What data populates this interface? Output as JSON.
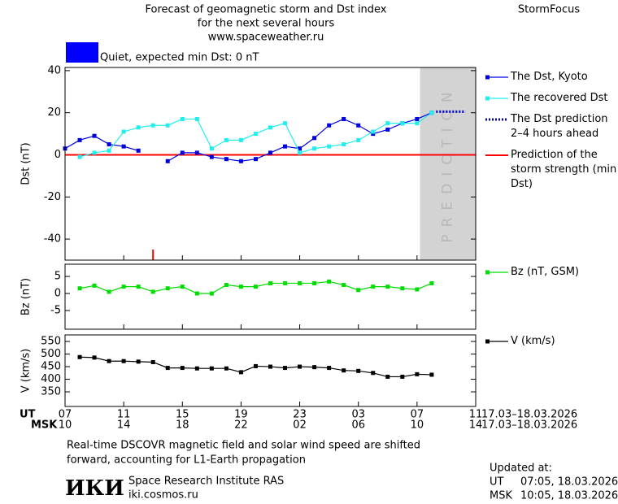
{
  "header": {
    "title": "Forecast of geomagnetic storm and Dst index",
    "subtitle": "for the next several hours",
    "url": "www.spaceweather.ru",
    "brand": "StormFocus"
  },
  "chart_data": [
    {
      "type": "line",
      "ylabel": "Dst (nT)",
      "xlim": [
        0,
        28
      ],
      "ylim": [
        -50,
        41.5
      ],
      "yticks": [
        -40,
        -20,
        0,
        20,
        40
      ],
      "status": {
        "label": "Quiet, expected min Dst: 0 nT",
        "color": "#0000ff"
      },
      "prediction_band": {
        "start": 24.2,
        "end": 28,
        "label": "PREDICTION",
        "color": "#d3d3d3"
      },
      "series": [
        {
          "name": "The Dst, Kyoto",
          "color": "#0000dd",
          "marker": "square",
          "x": [
            0,
            1,
            2,
            3,
            4,
            5,
            6,
            7,
            8,
            9,
            10,
            11,
            12,
            13,
            14,
            15,
            16,
            17,
            18,
            19,
            20,
            21,
            22,
            23,
            24,
            25
          ],
          "values": [
            3,
            7,
            9,
            5,
            4,
            2,
            null,
            -3,
            1,
            1,
            -1,
            -2,
            -3,
            -2,
            1,
            4,
            3,
            8,
            14,
            17,
            14,
            10,
            12,
            15,
            17,
            20
          ]
        },
        {
          "name": "The recovered Dst",
          "color": "#22eeee",
          "marker": "square",
          "x": [
            1,
            2,
            3,
            4,
            5,
            6,
            7,
            8,
            9,
            10,
            11,
            12,
            13,
            14,
            15,
            16,
            17,
            18,
            19,
            20,
            21,
            22,
            23,
            24,
            25
          ],
          "values": [
            -1,
            1,
            2,
            11,
            13,
            14,
            14,
            17,
            17,
            3,
            7,
            7,
            10,
            13,
            15,
            1,
            3,
            4,
            5,
            7,
            11,
            15,
            15,
            15,
            20
          ]
        },
        {
          "name": "The Dst prediction 2–4 hours ahead",
          "color": "#0000cc",
          "line_style": "dotted",
          "x": [
            25.3,
            27.3
          ],
          "values": [
            20.5,
            20.5
          ]
        }
      ],
      "reference_line": {
        "name": "Prediction of the storm strength (min Dst)",
        "value": 0,
        "x": 6,
        "color": "#ff0000"
      }
    },
    {
      "type": "line",
      "ylabel": "Bz (nT)",
      "xlim": [
        0,
        28
      ],
      "ylim": [
        -10.5,
        8.6
      ],
      "yticks": [
        -5,
        0,
        5
      ],
      "series": [
        {
          "name": "Bz (nT, GSM)",
          "color": "#00dd00",
          "marker": "square",
          "x": [
            1,
            2,
            3,
            4,
            5,
            6,
            7,
            8,
            9,
            10,
            11,
            12,
            13,
            14,
            15,
            16,
            17,
            18,
            19,
            20,
            21,
            22,
            23,
            24,
            25
          ],
          "values": [
            1.5,
            2.3,
            0.5,
            2,
            2,
            0.5,
            1.5,
            2,
            0,
            0,
            2.5,
            2,
            2,
            3,
            3,
            3,
            3,
            3.5,
            2.5,
            1,
            2,
            2,
            1.5,
            1.2,
            3
          ]
        }
      ]
    },
    {
      "type": "line",
      "ylabel": "V (km/s)",
      "xlim": [
        0,
        28
      ],
      "ylim": [
        292,
        576
      ],
      "yticks": [
        350,
        400,
        450,
        500,
        550
      ],
      "xlabel": "UT",
      "x2label": "MSK",
      "date_range": "17.03–18.03.2026",
      "xticks": [
        {
          "value": 0,
          "label": "07"
        },
        {
          "value": 4,
          "label": "11"
        },
        {
          "value": 8,
          "label": "15"
        },
        {
          "value": 12,
          "label": "19"
        },
        {
          "value": 16,
          "label": "23"
        },
        {
          "value": 20,
          "label": "03"
        },
        {
          "value": 24,
          "label": "07"
        },
        {
          "value": 28,
          "label": "11"
        }
      ],
      "xticks2": [
        {
          "value": 0,
          "label": "10"
        },
        {
          "value": 4,
          "label": "14"
        },
        {
          "value": 8,
          "label": "18"
        },
        {
          "value": 12,
          "label": "22"
        },
        {
          "value": 16,
          "label": "02"
        },
        {
          "value": 20,
          "label": "06"
        },
        {
          "value": 24,
          "label": "10"
        },
        {
          "value": 28,
          "label": "14"
        }
      ],
      "series": [
        {
          "name": "V (km/s)",
          "color": "#000000",
          "marker": "square",
          "x": [
            1,
            2,
            3,
            4,
            5,
            6,
            7,
            8,
            9,
            10,
            11,
            12,
            13,
            14,
            15,
            16,
            17,
            18,
            19,
            20,
            21,
            22,
            23,
            24,
            25
          ],
          "values": [
            488,
            486,
            472,
            472,
            470,
            468,
            445,
            445,
            443,
            443,
            443,
            428,
            452,
            450,
            445,
            450,
            448,
            445,
            435,
            433,
            425,
            410,
            410,
            420,
            418
          ]
        }
      ]
    }
  ],
  "footer": {
    "note_lines": [
      "Real-time DSCOVR magnetic field and solar wind speed are shifted",
      "forward, accounting for L1-Earth propagation"
    ],
    "logo": "ИКИ",
    "institute": "Space Research Institute RAS",
    "site": "iki.cosmos.ru",
    "updated": {
      "label": "Updated at:",
      "ut_label": "UT",
      "ut_time": "07:05, 18.03.2026",
      "msk_label": "MSK",
      "msk_time": "10:05, 18.03.2026"
    }
  }
}
